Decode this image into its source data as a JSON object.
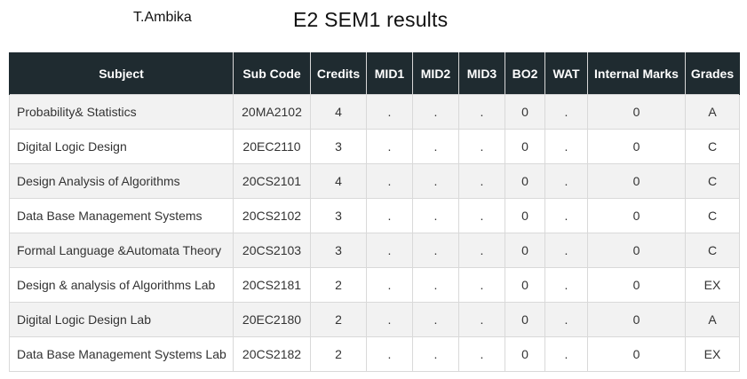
{
  "header": {
    "student_name": "T.Ambika",
    "title": "E2 SEM1 results"
  },
  "table": {
    "columns": [
      "Subject",
      "Sub Code",
      "Credits",
      "MID1",
      "MID2",
      "MID3",
      "BO2",
      "WAT",
      "Internal Marks",
      "Grades"
    ],
    "rows": [
      {
        "subject": "Probability& Statistics",
        "code": "20MA2102",
        "credits": "4",
        "mid1": ".",
        "mid2": ".",
        "mid3": ".",
        "bo2": "0",
        "wat": ".",
        "internal": "0",
        "grade": "A"
      },
      {
        "subject": "Digital Logic Design",
        "code": "20EC2110",
        "credits": "3",
        "mid1": ".",
        "mid2": ".",
        "mid3": ".",
        "bo2": "0",
        "wat": ".",
        "internal": "0",
        "grade": "C"
      },
      {
        "subject": "Design Analysis of Algorithms",
        "code": "20CS2101",
        "credits": "4",
        "mid1": ".",
        "mid2": ".",
        "mid3": ".",
        "bo2": "0",
        "wat": ".",
        "internal": "0",
        "grade": "C"
      },
      {
        "subject": "Data Base Management Systems",
        "code": "20CS2102",
        "credits": "3",
        "mid1": ".",
        "mid2": ".",
        "mid3": ".",
        "bo2": "0",
        "wat": ".",
        "internal": "0",
        "grade": "C"
      },
      {
        "subject": "Formal Language &Automata Theory",
        "code": "20CS2103",
        "credits": "3",
        "mid1": ".",
        "mid2": ".",
        "mid3": ".",
        "bo2": "0",
        "wat": ".",
        "internal": "0",
        "grade": "C"
      },
      {
        "subject": "Design & analysis of Algorithms Lab",
        "code": "20CS2181",
        "credits": "2",
        "mid1": ".",
        "mid2": ".",
        "mid3": ".",
        "bo2": "0",
        "wat": ".",
        "internal": "0",
        "grade": "EX"
      },
      {
        "subject": "Digital Logic Design Lab",
        "code": "20EC2180",
        "credits": "2",
        "mid1": ".",
        "mid2": ".",
        "mid3": ".",
        "bo2": "0",
        "wat": ".",
        "internal": "0",
        "grade": "A"
      },
      {
        "subject": "Data Base Management Systems Lab",
        "code": "20CS2182",
        "credits": "2",
        "mid1": ".",
        "mid2": ".",
        "mid3": ".",
        "bo2": "0",
        "wat": ".",
        "internal": "0",
        "grade": "EX"
      }
    ]
  },
  "colors": {
    "header_bg": "#1f2b30",
    "header_text": "#ffffff",
    "row_alt_bg": "#f2f2f2",
    "border": "#d9d9d9"
  }
}
